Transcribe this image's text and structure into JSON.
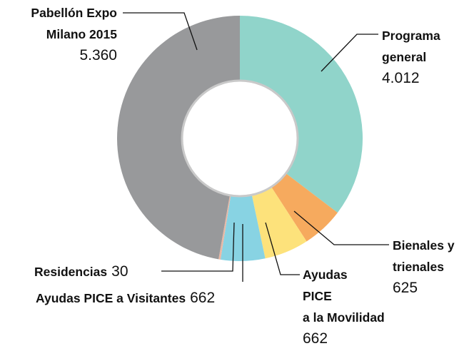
{
  "chart_data": {
    "type": "donut",
    "categories": [
      "Programa\ngeneral",
      "Bienales y\ntrienales",
      "Ayudas\nPICE\na la Movilidad",
      "Ayudas PICE a Visitantes",
      "Residencias",
      "Pabellón Expo\nMilano 2015"
    ],
    "values": [
      4012,
      625,
      662,
      662,
      30,
      5360
    ],
    "value_labels": [
      "4.012",
      "625",
      "662",
      "662",
      "30",
      "5.360"
    ],
    "colors": [
      "#90d4ca",
      "#f6aa5e",
      "#fde27b",
      "#88d3e3",
      "#e9b8a5",
      "#98999b"
    ]
  }
}
